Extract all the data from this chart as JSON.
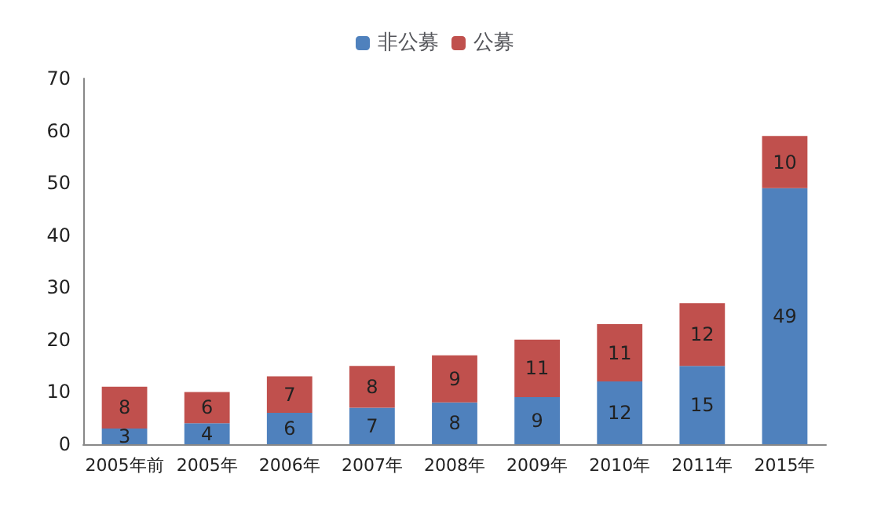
{
  "chart_data": {
    "type": "bar",
    "stacked": true,
    "data_labels": true,
    "legend": "top",
    "grid": false,
    "categories": [
      "2005年前",
      "2005年",
      "2006年",
      "2007年",
      "2008年",
      "2009年",
      "2010年",
      "2011年",
      "2015年"
    ],
    "series": [
      {
        "name": "非公募",
        "color": "#4f81bd",
        "values": [
          3,
          4,
          6,
          7,
          8,
          9,
          12,
          15,
          49
        ]
      },
      {
        "name": "公募",
        "color": "#c0504d",
        "values": [
          8,
          6,
          7,
          8,
          9,
          11,
          11,
          12,
          10
        ]
      }
    ],
    "ylim": [
      0,
      70
    ],
    "yticks": [
      0,
      10,
      20,
      30,
      40,
      50,
      60,
      70
    ]
  }
}
